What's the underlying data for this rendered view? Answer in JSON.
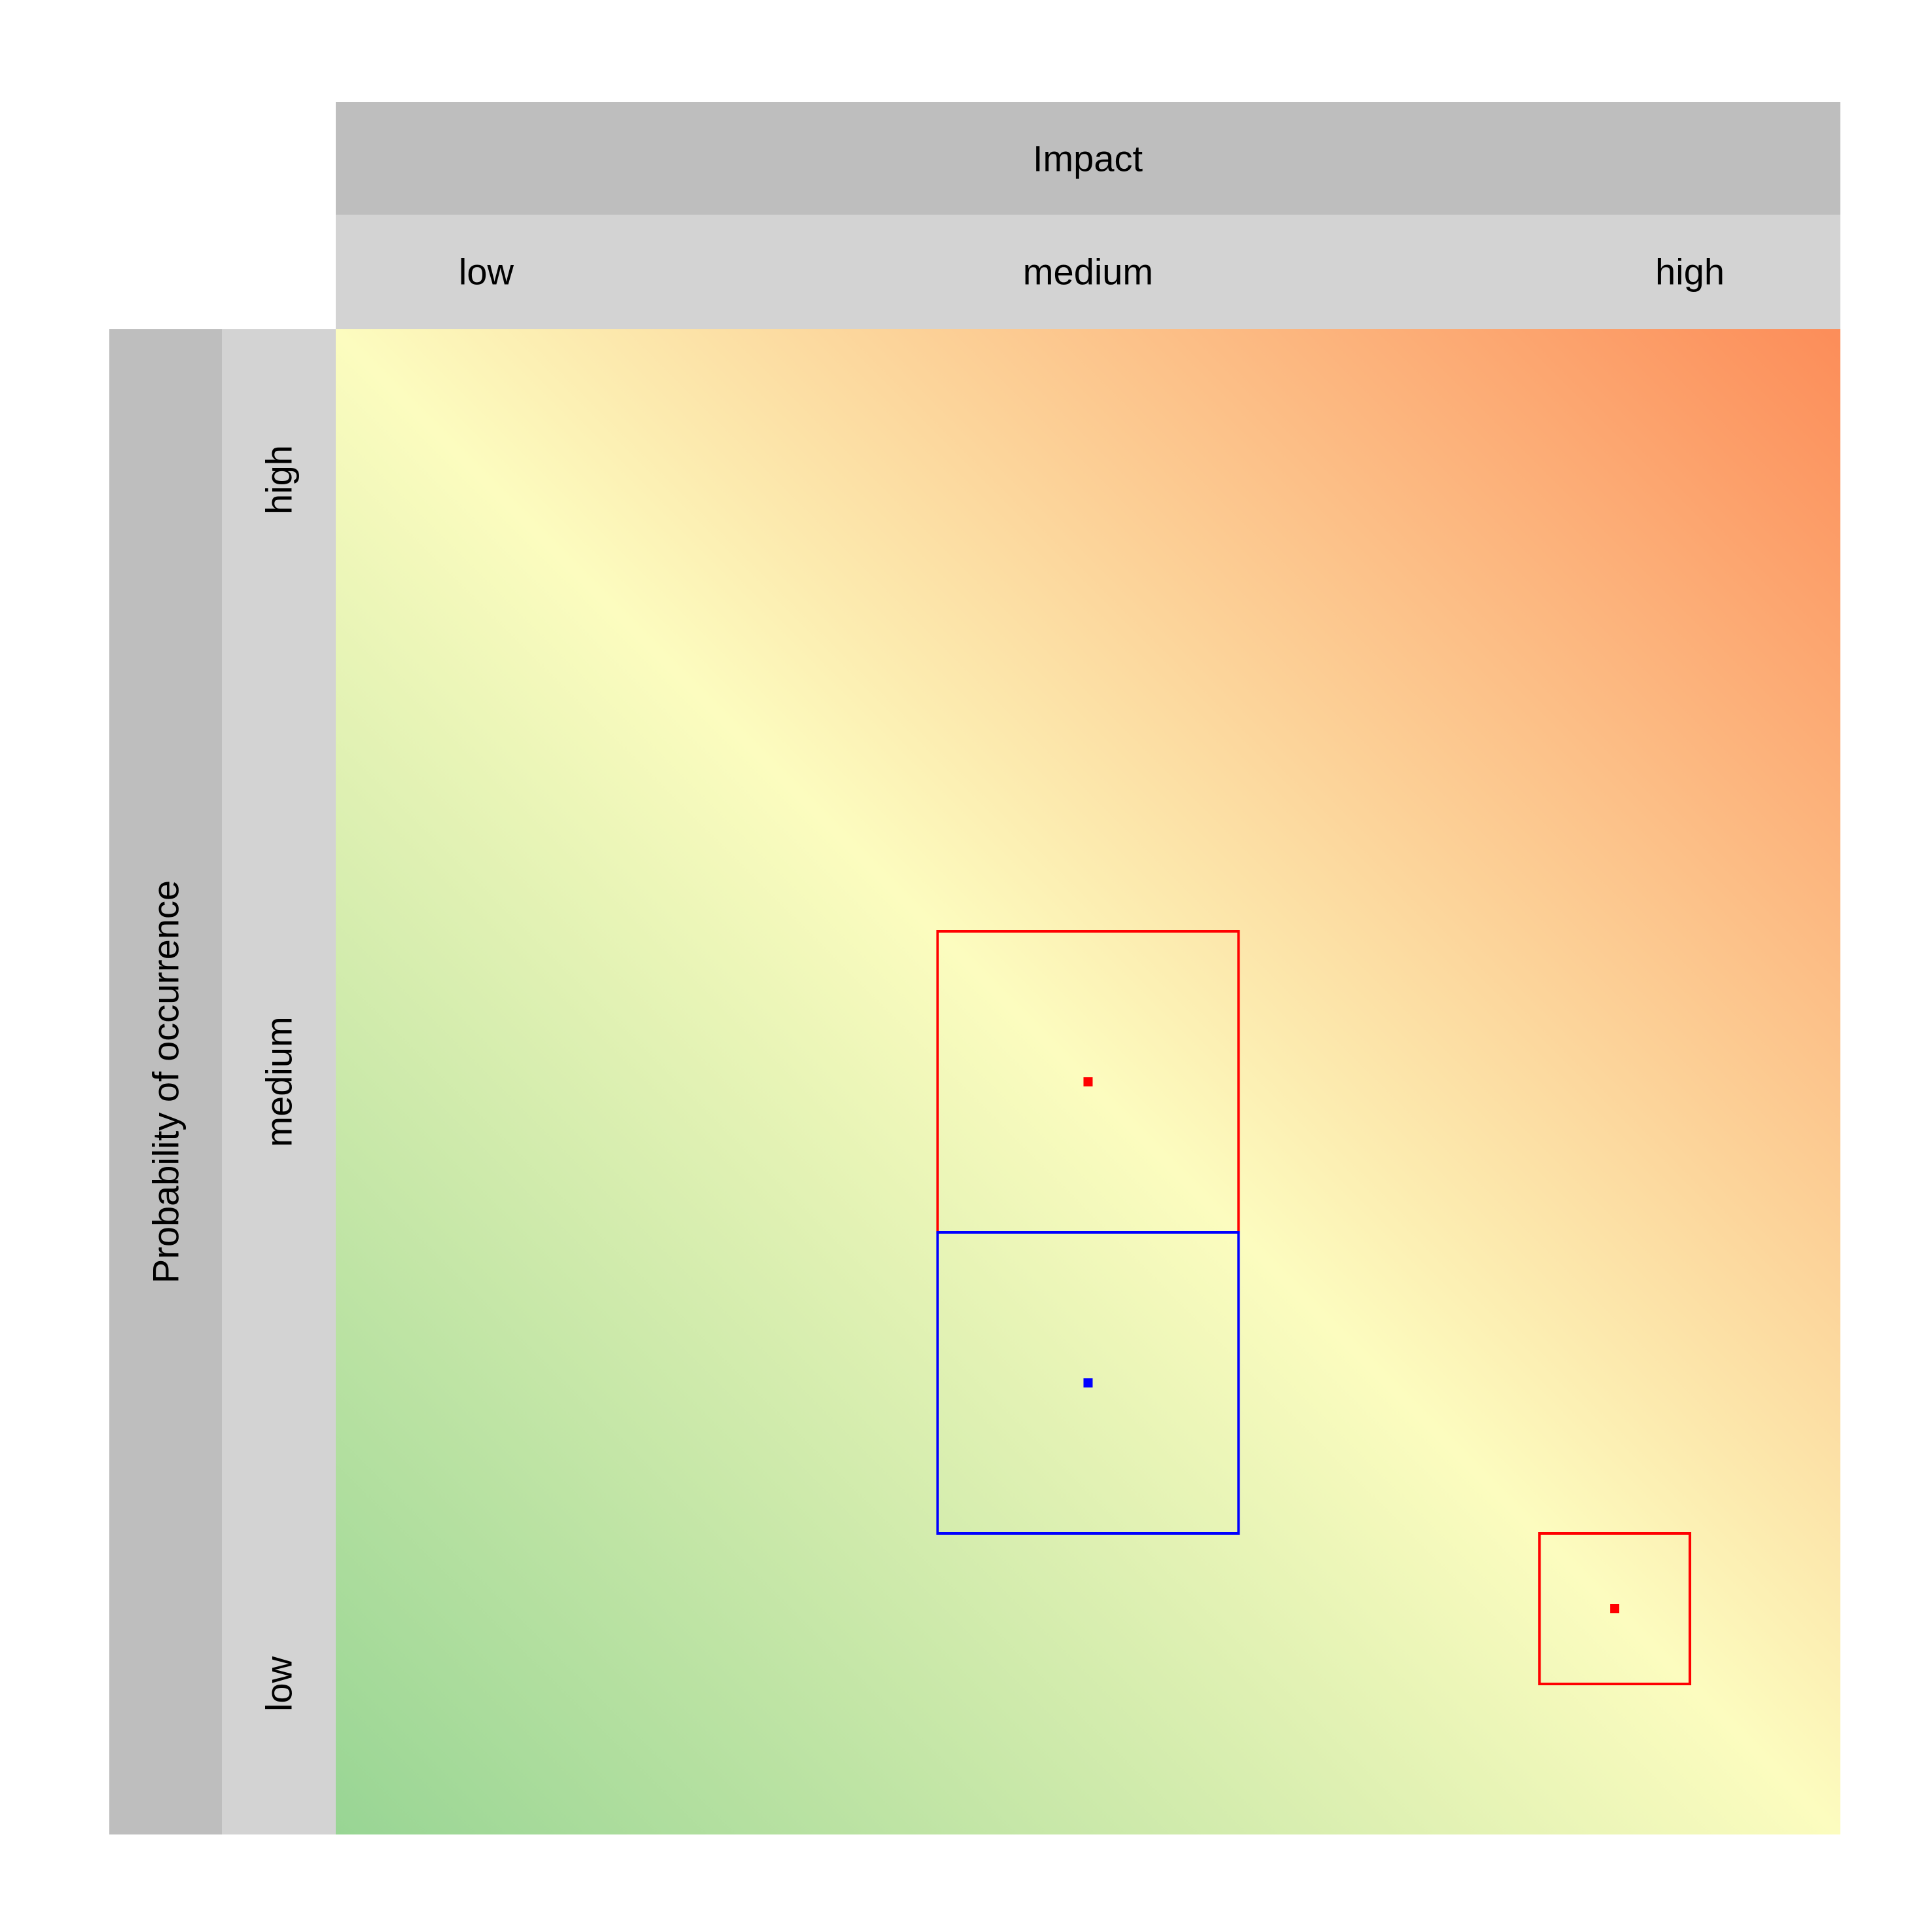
{
  "chart_data": {
    "type": "scatter",
    "subtype": "risk-matrix",
    "x_title": "Impact",
    "y_title": "Probability of occurrence",
    "x_categories": [
      "low",
      "medium",
      "high"
    ],
    "y_categories": [
      "low",
      "medium",
      "high"
    ],
    "xlim": [
      0,
      1
    ],
    "ylim": [
      0,
      1
    ],
    "grid": false,
    "legend": "none",
    "background_gradient": {
      "low_corner": "#98d594",
      "diagonal": "#fcfcbf",
      "high_corner": "#fc8d59"
    },
    "header_colors": {
      "title_bar": "#bebebe",
      "category_bar": "#d3d3d3"
    },
    "items": [
      {
        "color": "#ff0000",
        "x": 0.5,
        "y": 0.5,
        "x_min": 0.4,
        "x_max": 0.6,
        "y_min": 0.4,
        "y_max": 0.6
      },
      {
        "color": "#0000ff",
        "x": 0.5,
        "y": 0.3,
        "x_min": 0.4,
        "x_max": 0.6,
        "y_min": 0.2,
        "y_max": 0.4
      },
      {
        "color": "#ff0000",
        "x": 0.85,
        "y": 0.15,
        "x_min": 0.8,
        "x_max": 0.9,
        "y_min": 0.1,
        "y_max": 0.2
      }
    ]
  }
}
